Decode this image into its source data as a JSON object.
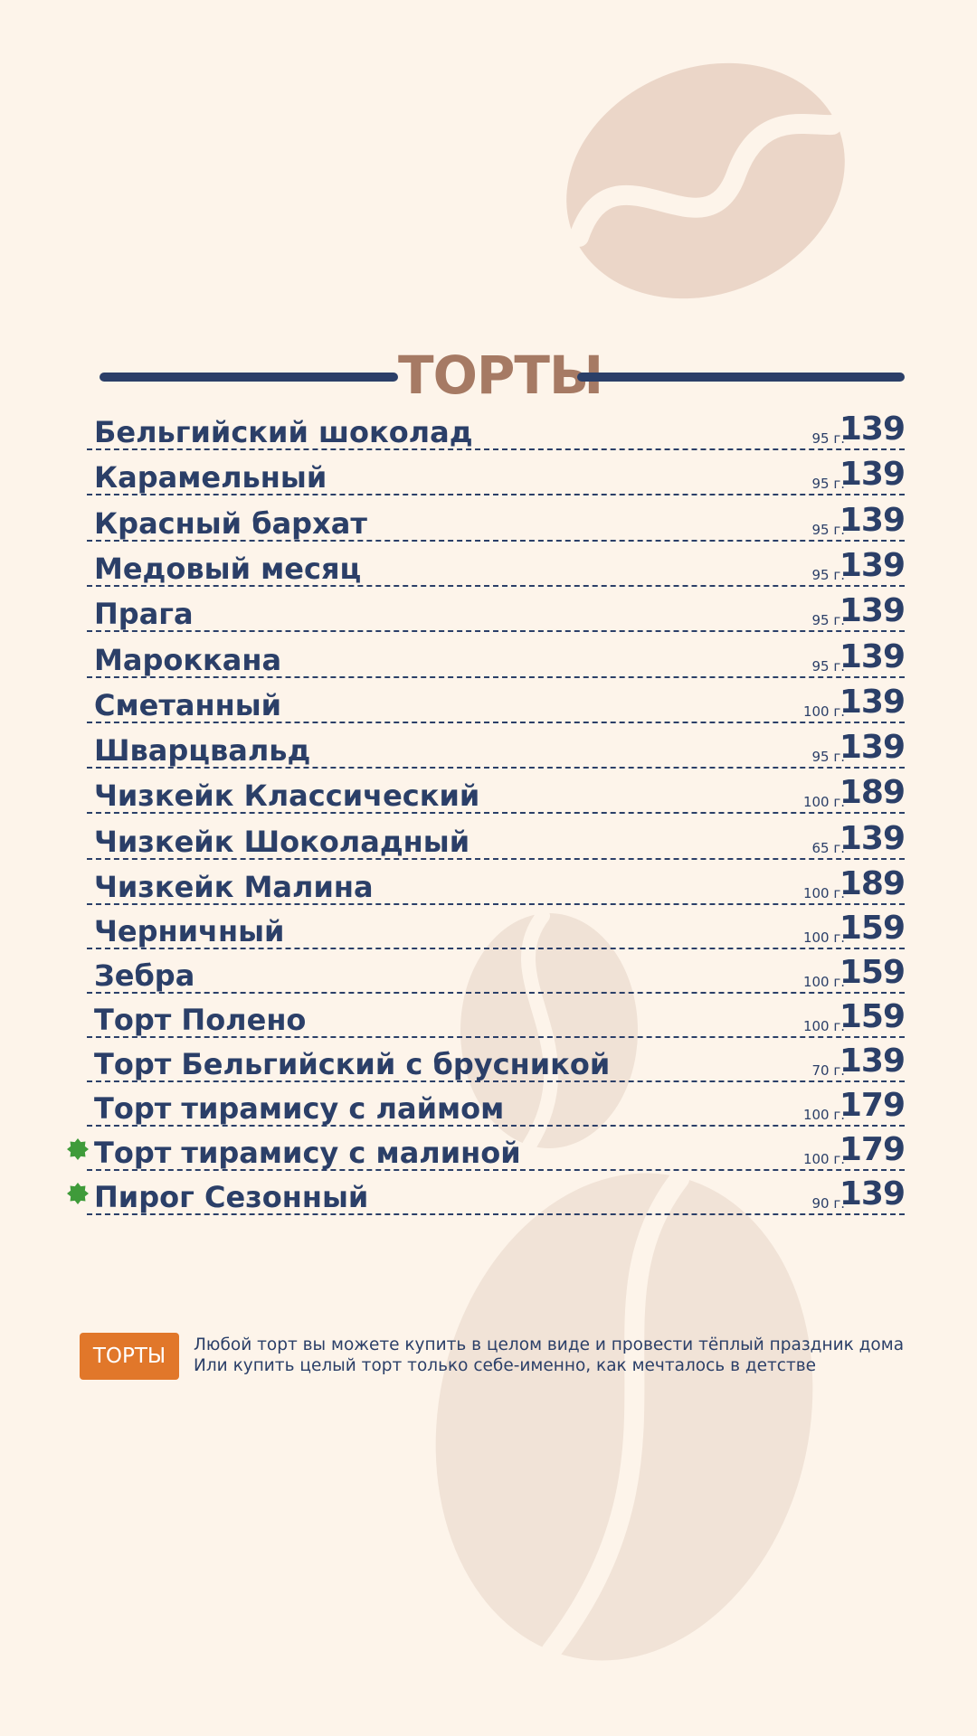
{
  "section_title": "ТОРТЫ",
  "items": [
    {
      "name": "Бельгийский шоколад",
      "weight": "95 г.",
      "price": "139",
      "new": false
    },
    {
      "name": "Карамельный",
      "weight": "95 г.",
      "price": "139",
      "new": false
    },
    {
      "name": "Красный бархат",
      "weight": "95 г.",
      "price": "139",
      "new": false
    },
    {
      "name": "Медовый месяц",
      "weight": "95 г.",
      "price": "139",
      "new": false
    },
    {
      "name": "Прага",
      "weight": "95 г.",
      "price": "139",
      "new": false
    },
    {
      "name": "Мароккана",
      "weight": "95 г.",
      "price": "139",
      "new": false
    },
    {
      "name": "Сметанный",
      "weight": "100 г.",
      "price": "139",
      "new": false
    },
    {
      "name": "Шварцвальд",
      "weight": "95 г.",
      "price": "139",
      "new": false
    },
    {
      "name": "Чизкейк Классический",
      "weight": "100 г.",
      "price": "189",
      "new": false
    },
    {
      "name": "Чизкейк Шоколадный",
      "weight": "65 г.",
      "price": "139",
      "new": false
    },
    {
      "name": "Чизкейк Малина",
      "weight": "100 г.",
      "price": "189",
      "new": false
    },
    {
      "name": "Черничный",
      "weight": "100 г.",
      "price": "159",
      "new": false
    },
    {
      "name": "Зебра",
      "weight": "100 г.",
      "price": "159",
      "new": false
    },
    {
      "name": "Торт Полено",
      "weight": "100 г.",
      "price": "159",
      "new": false
    },
    {
      "name": "Торт Бельгийский с брусникой",
      "weight": "70 г.",
      "price": "139",
      "new": false
    },
    {
      "name": "Торт тирамису с лаймом",
      "weight": "100 г.",
      "price": "179",
      "new": false
    },
    {
      "name": "Торт тирамису с малиной",
      "weight": "100 г.",
      "price": "179",
      "new": true
    },
    {
      "name": "Пирог Сезонный",
      "weight": "90 г.",
      "price": "139",
      "new": true
    }
  ],
  "note": {
    "tag": "ТОРТЫ",
    "line1": "Любой торт вы можете купить в целом виде и провести тёплый праздник дома",
    "line2": "Или купить целый торт только себе-именно, как мечталось в детстве"
  },
  "colors": {
    "background": "#fdf4ea",
    "text": "#2b3f68",
    "title": "#a67a64",
    "tag": "#e1772a",
    "new_badge": "#3f9b3a",
    "bean": "#ecd7c9"
  },
  "icons": {
    "new_badge": "new-star-icon",
    "decor": "coffee-bean-icon"
  }
}
